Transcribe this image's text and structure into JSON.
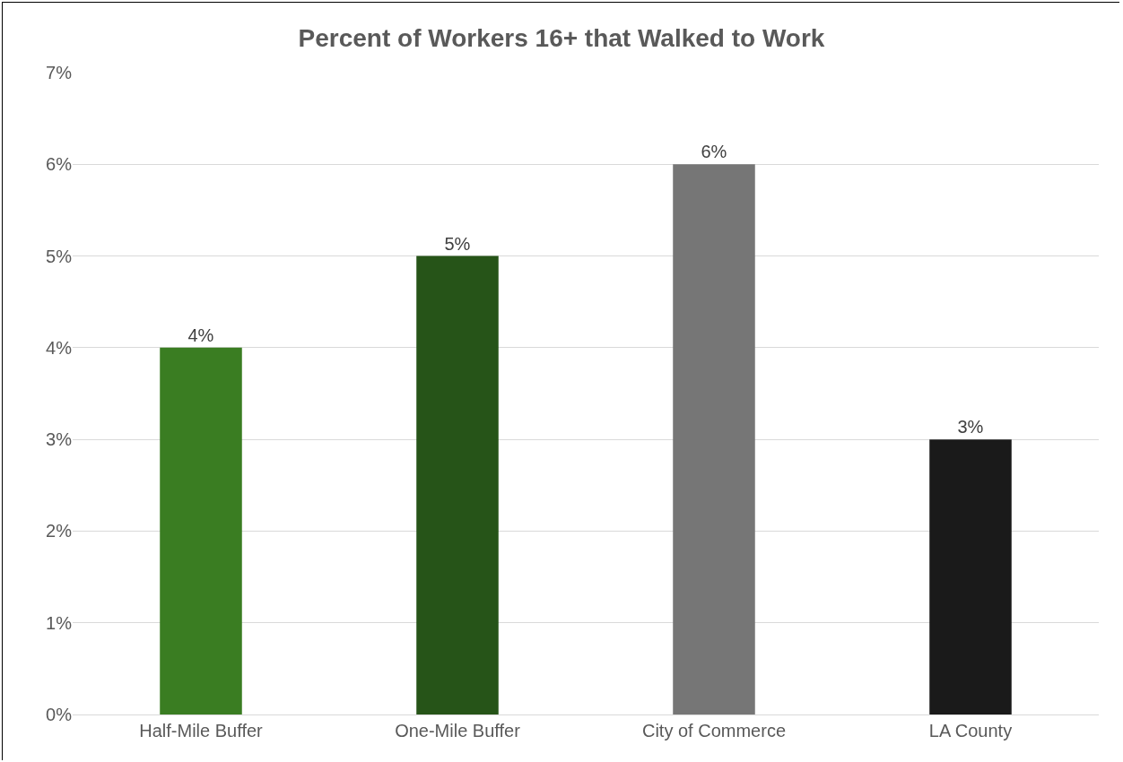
{
  "chart_data": {
    "type": "bar",
    "title": "Percent of Workers 16+ that Walked to Work",
    "categories": [
      "Half-Mile Buffer",
      "One-Mile Buffer",
      "City of Commerce",
      "LA County"
    ],
    "values": [
      4,
      5,
      6,
      3
    ],
    "value_labels": [
      "4%",
      "5%",
      "6%",
      "3%"
    ],
    "colors": [
      "#3a7d22",
      "#265418",
      "#767676",
      "#1a1a1a"
    ],
    "ylim": [
      0,
      7
    ],
    "yticks": [
      {
        "value": 0,
        "label": "0%"
      },
      {
        "value": 1,
        "label": "1%"
      },
      {
        "value": 2,
        "label": "2%"
      },
      {
        "value": 3,
        "label": "3%"
      },
      {
        "value": 4,
        "label": "4%"
      },
      {
        "value": 5,
        "label": "5%"
      },
      {
        "value": 6,
        "label": "6%"
      },
      {
        "value": 7,
        "label": "7%"
      }
    ],
    "grid": "y"
  }
}
